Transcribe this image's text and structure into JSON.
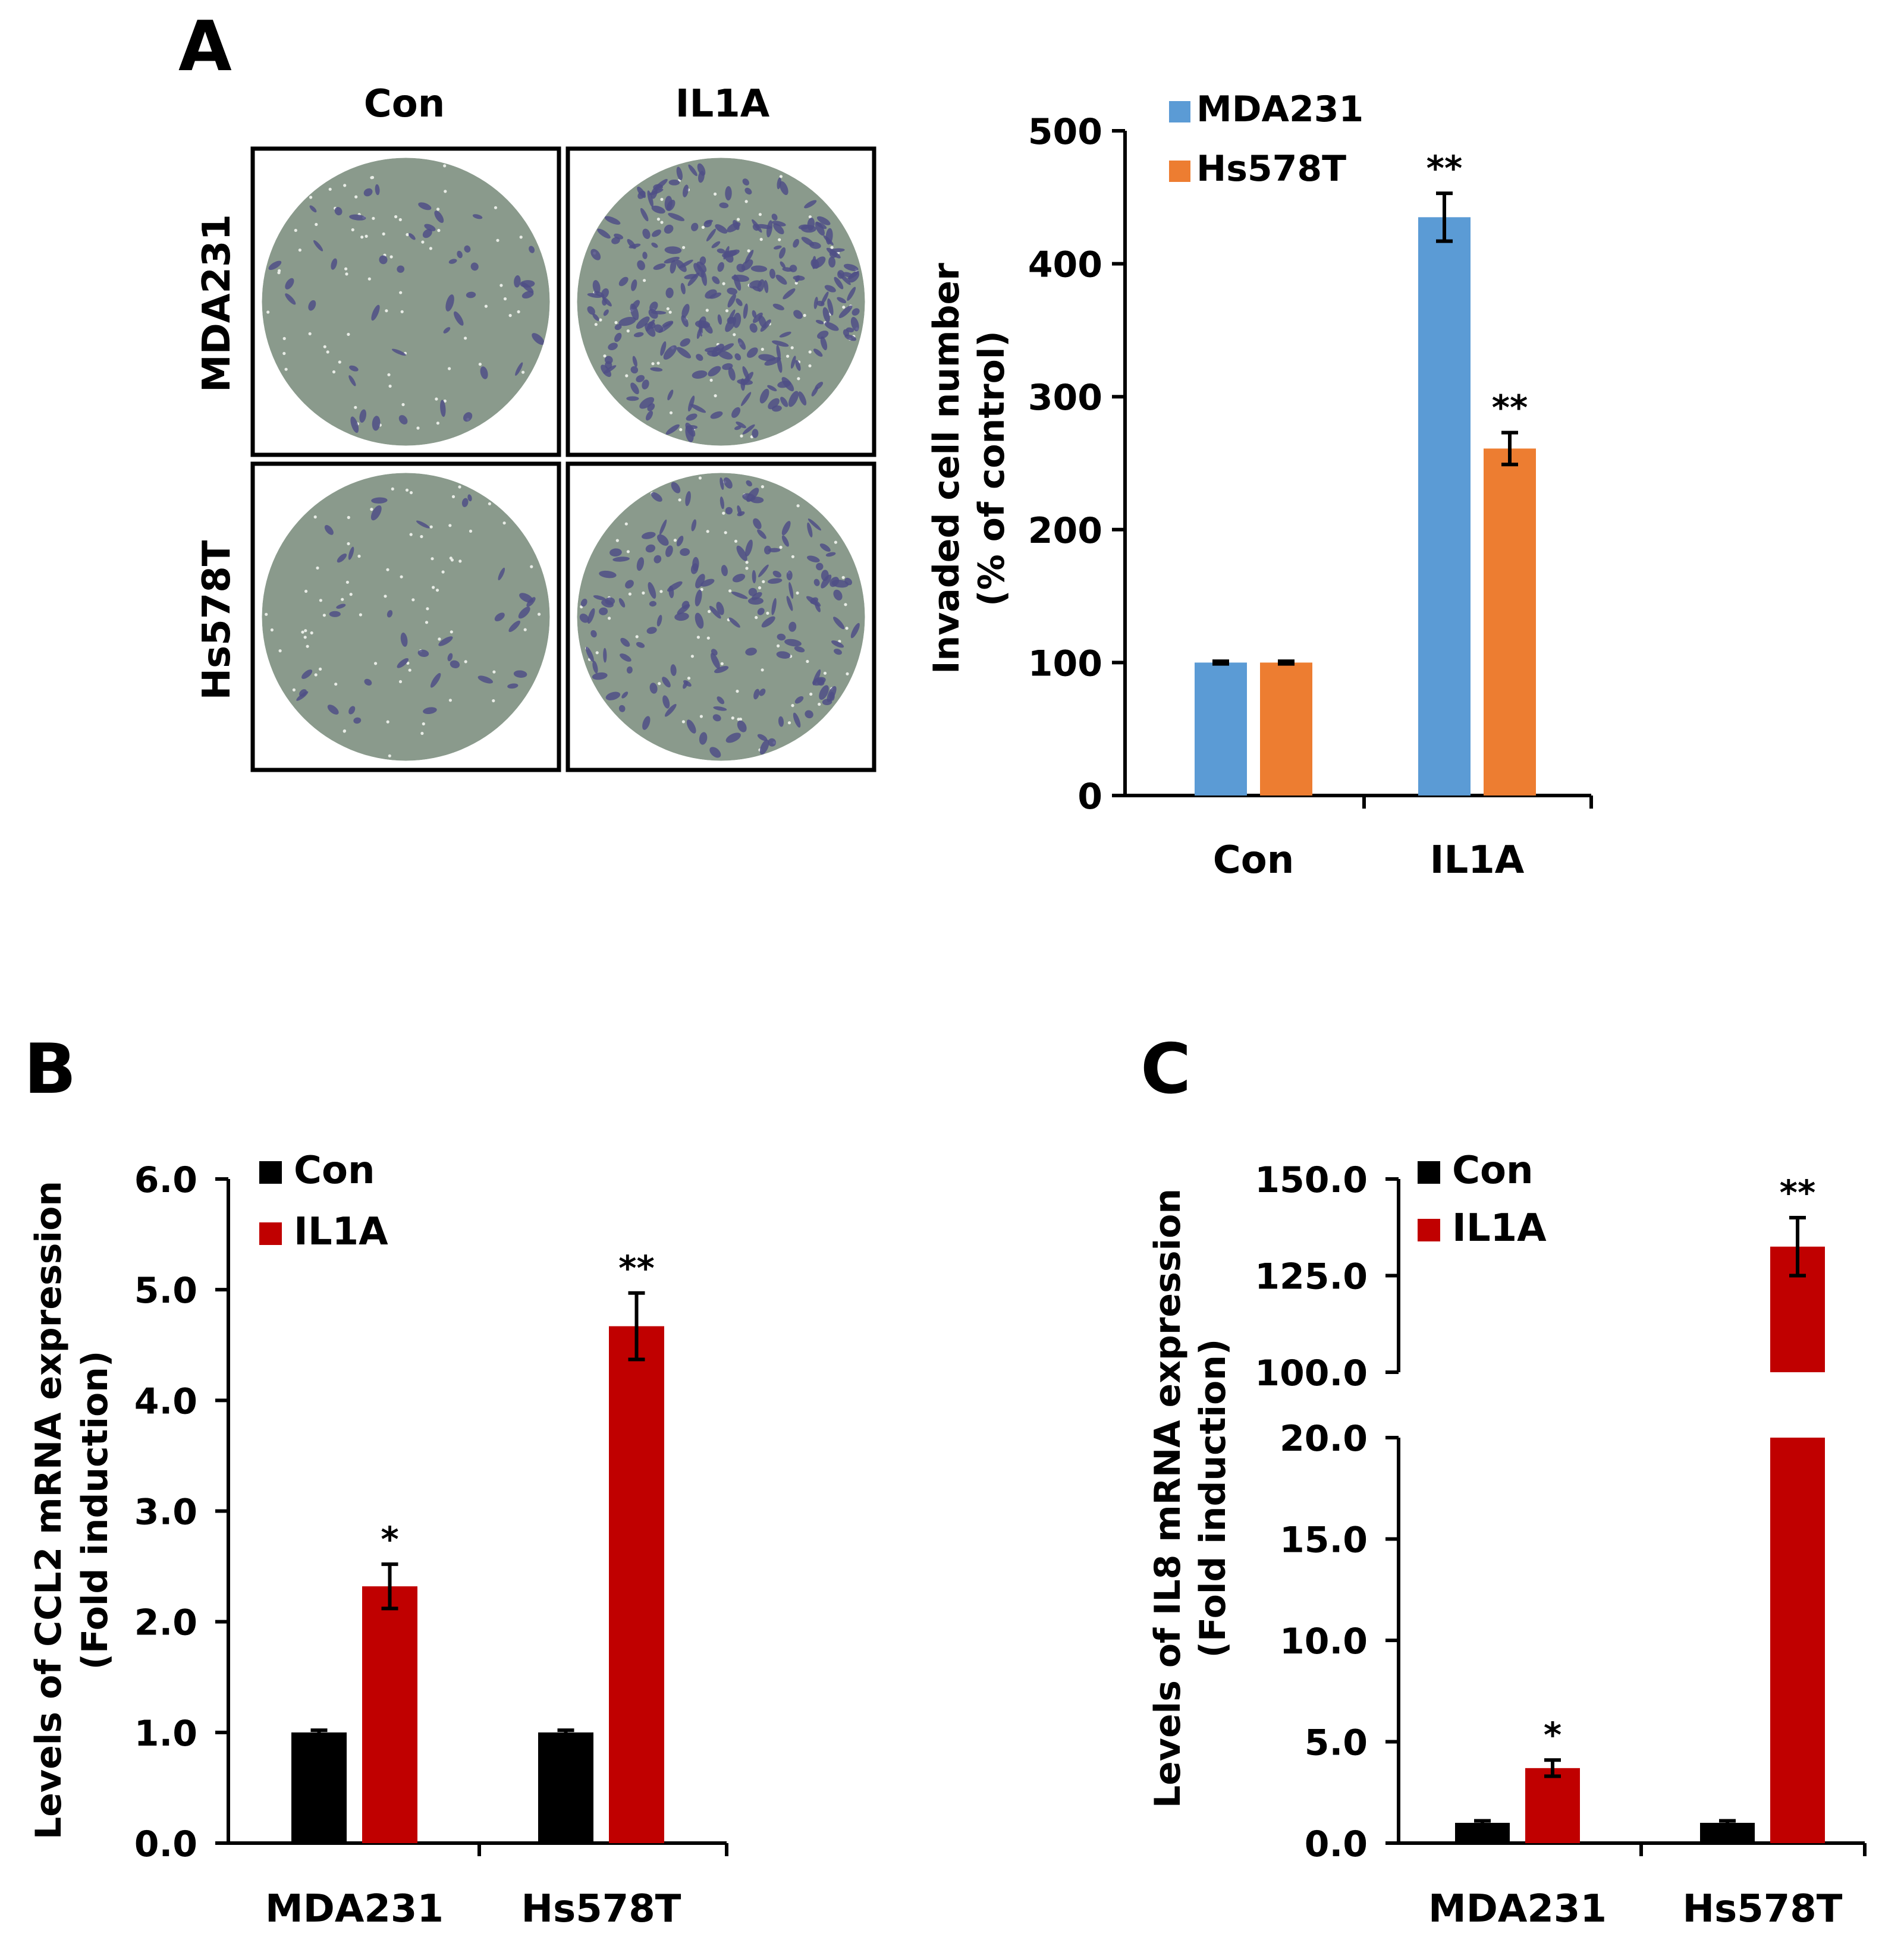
{
  "colors": {
    "mda231": "#5B9BD5",
    "hs578t": "#ED7D31",
    "con": "#000000",
    "il1a": "#C00000",
    "micro_bg": "#8a9a8c",
    "cell": "#4f4f86"
  },
  "panel_a": {
    "label": "A",
    "col_headers": [
      "Con",
      "IL1A"
    ],
    "row_labels": [
      "MDA231",
      "Hs578T"
    ],
    "micrographs": [
      {
        "row": "MDA231",
        "col": "Con",
        "density": "low"
      },
      {
        "row": "MDA231",
        "col": "IL1A",
        "density": "very high"
      },
      {
        "row": "Hs578T",
        "col": "Con",
        "density": "low"
      },
      {
        "row": "Hs578T",
        "col": "IL1A",
        "density": "high"
      }
    ]
  },
  "panel_b": {
    "label": "B"
  },
  "panel_c": {
    "label": "C"
  },
  "chart_data": [
    {
      "id": "A",
      "type": "bar",
      "title": "",
      "categories": [
        "Con",
        "IL1A"
      ],
      "series": [
        {
          "name": "MDA231",
          "values": [
            100,
            435
          ],
          "errors": [
            1,
            18
          ],
          "significance": [
            "",
            "**"
          ]
        },
        {
          "name": "Hs578T",
          "values": [
            100,
            261
          ],
          "errors": [
            1,
            12
          ],
          "significance": [
            "",
            "**"
          ]
        }
      ],
      "ylabel": "Invaded cell number",
      "ylabel2": "(% of control)",
      "ylim": [
        0,
        500
      ],
      "yticks": [
        "0",
        "100",
        "200",
        "300",
        "400",
        "500"
      ],
      "legend": "top-left",
      "grid": false
    },
    {
      "id": "B",
      "type": "bar",
      "title": "",
      "categories": [
        "MDA231",
        "Hs578T"
      ],
      "series": [
        {
          "name": "Con",
          "values": [
            1.0,
            1.0
          ],
          "errors": [
            0.02,
            0.02
          ],
          "significance": [
            "",
            ""
          ]
        },
        {
          "name": "IL1A",
          "values": [
            2.32,
            4.67
          ],
          "errors": [
            0.2,
            0.3
          ],
          "significance": [
            "*",
            "**"
          ]
        }
      ],
      "ylabel": "Levels of CCL2 mRNA expression",
      "ylabel2": "(Fold induction)",
      "ylim": [
        0,
        6
      ],
      "yticks": [
        "0.0",
        "1.0",
        "2.0",
        "3.0",
        "4.0",
        "5.0",
        "6.0"
      ],
      "legend": "top-left",
      "grid": false
    },
    {
      "id": "C",
      "type": "bar",
      "title": "",
      "categories": [
        "MDA231",
        "Hs578T"
      ],
      "series": [
        {
          "name": "Con",
          "values": [
            1.0,
            1.0
          ],
          "errors": [
            0.1,
            0.1
          ],
          "significance": [
            "",
            ""
          ]
        },
        {
          "name": "IL1A",
          "values": [
            3.7,
            132.5
          ],
          "errors": [
            0.4,
            7.5
          ],
          "significance": [
            "*",
            "**"
          ]
        }
      ],
      "ylabel": "Levels of IL8 mRNA expression",
      "ylabel2": "(Fold induction)",
      "axis_break": true,
      "ylim_lower": [
        0,
        20
      ],
      "ylim_upper": [
        100,
        150
      ],
      "yticks_lower": [
        "0.0",
        "5.0",
        "10.0",
        "15.0",
        "20.0"
      ],
      "yticks_upper": [
        "100.0",
        "125.0",
        "150.0"
      ],
      "legend": "top-left",
      "grid": false
    }
  ]
}
